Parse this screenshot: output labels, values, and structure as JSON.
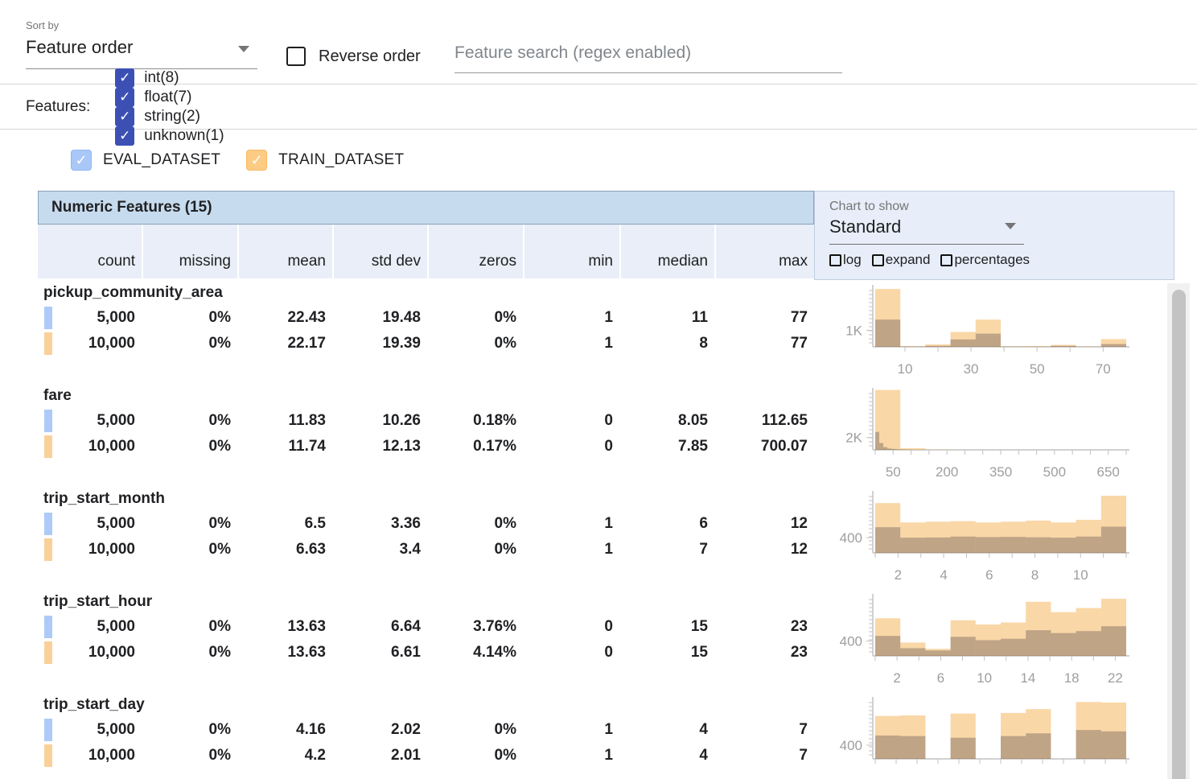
{
  "toolbar": {
    "sort_by_label": "Sort by",
    "sort_value": "Feature order",
    "reverse_label": "Reverse order",
    "search_placeholder": "Feature search (regex enabled)"
  },
  "filters": {
    "label": "Features:",
    "types": [
      {
        "id": "int",
        "label": "int(8)",
        "checked": true
      },
      {
        "id": "float",
        "label": "float(7)",
        "checked": true
      },
      {
        "id": "string",
        "label": "string(2)",
        "checked": true
      },
      {
        "id": "unknown",
        "label": "unknown(1)",
        "checked": true
      }
    ],
    "checkbox_color": "#3c50b4"
  },
  "datasets": [
    {
      "name": "EVAL_DATASET",
      "checked": true,
      "checkbox_color": "#a9c8f8",
      "checkbox_border": "#90b6f3",
      "swatch": "#adcaf9"
    },
    {
      "name": "TRAIN_DATASET",
      "checked": true,
      "checkbox_color": "#fccb84",
      "checkbox_border": "#f9ba61",
      "swatch": "#fad099"
    }
  ],
  "chart_controls": {
    "label": "Chart to show",
    "value": "Standard",
    "checkboxes": [
      "log",
      "expand",
      "percentages"
    ]
  },
  "table": {
    "title": "Numeric Features (15)",
    "columns": [
      "count",
      "missing",
      "mean",
      "std dev",
      "zeros",
      "min",
      "median",
      "max"
    ],
    "features": [
      {
        "name": "pickup_community_area",
        "rows": [
          {
            "dataset": "EVAL_DATASET",
            "values": [
              "5,000",
              "0%",
              "22.43",
              "19.48",
              "0%",
              "1",
              "11",
              "77"
            ]
          },
          {
            "dataset": "TRAIN_DATASET",
            "values": [
              "10,000",
              "0%",
              "22.17",
              "19.39",
              "0%",
              "1",
              "8",
              "77"
            ]
          }
        ]
      },
      {
        "name": "fare",
        "rows": [
          {
            "dataset": "EVAL_DATASET",
            "values": [
              "5,000",
              "0%",
              "11.83",
              "10.26",
              "0.18%",
              "0",
              "8.05",
              "112.65"
            ]
          },
          {
            "dataset": "TRAIN_DATASET",
            "values": [
              "10,000",
              "0%",
              "11.74",
              "12.13",
              "0.17%",
              "0",
              "7.85",
              "700.07"
            ]
          }
        ]
      },
      {
        "name": "trip_start_month",
        "rows": [
          {
            "dataset": "EVAL_DATASET",
            "values": [
              "5,000",
              "0%",
              "6.5",
              "3.36",
              "0%",
              "1",
              "6",
              "12"
            ]
          },
          {
            "dataset": "TRAIN_DATASET",
            "values": [
              "10,000",
              "0%",
              "6.63",
              "3.4",
              "0%",
              "1",
              "7",
              "12"
            ]
          }
        ]
      },
      {
        "name": "trip_start_hour",
        "rows": [
          {
            "dataset": "EVAL_DATASET",
            "values": [
              "5,000",
              "0%",
              "13.63",
              "6.64",
              "3.76%",
              "0",
              "15",
              "23"
            ]
          },
          {
            "dataset": "TRAIN_DATASET",
            "values": [
              "10,000",
              "0%",
              "13.63",
              "6.61",
              "4.14%",
              "0",
              "15",
              "23"
            ]
          }
        ]
      },
      {
        "name": "trip_start_day",
        "rows": [
          {
            "dataset": "EVAL_DATASET",
            "values": [
              "5,000",
              "0%",
              "4.16",
              "2.02",
              "0%",
              "1",
              "4",
              "7"
            ]
          },
          {
            "dataset": "TRAIN_DATASET",
            "values": [
              "10,000",
              "0%",
              "4.2",
              "2.01",
              "0%",
              "1",
              "4",
              "7"
            ]
          }
        ]
      }
    ]
  },
  "chart_style": {
    "train_fill": "#f5a83f",
    "train_opacity": 0.46,
    "eval_fill": "#554b4e",
    "eval_opacity": 0.36,
    "axis_color": "#c2c2c2",
    "label_color": "#9e9e9e"
  },
  "chart_data": [
    {
      "type": "histogram",
      "feature": "pickup_community_area",
      "ylabel": "1K",
      "ylabel_value": 1000,
      "ymax": 3700,
      "xmin": 1,
      "xmax": 77,
      "xtick_step": 10,
      "xtick_labels": [
        10,
        30,
        50,
        70
      ],
      "series": [
        {
          "name": "TRAIN_DATASET",
          "bucket_width": 7.6,
          "x0": [
            1,
            8.6,
            16.2,
            23.8,
            31.4,
            39,
            46.6,
            54.2,
            61.8,
            69.4
          ],
          "counts": [
            3500,
            40,
            150,
            900,
            1650,
            30,
            40,
            120,
            20,
            470
          ]
        },
        {
          "name": "EVAL_DATASET",
          "bucket_width": 7.6,
          "x0": [
            1,
            8.6,
            16.2,
            23.8,
            31.4,
            39,
            46.6,
            54.2,
            61.8,
            69.4
          ],
          "counts": [
            1650,
            20,
            60,
            450,
            800,
            15,
            15,
            60,
            10,
            170
          ]
        }
      ]
    },
    {
      "type": "histogram",
      "feature": "fare",
      "ylabel": "2K",
      "ylabel_value": 2000,
      "ymax": 9900,
      "xmin": 0,
      "xmax": 700,
      "xtick_step": 50,
      "xtick_labels": [
        50,
        200,
        350,
        500,
        650
      ],
      "series": [
        {
          "name": "TRAIN_DATASET",
          "bucket_width": 70,
          "x0": [
            0,
            70,
            140,
            210,
            280,
            350,
            420,
            490,
            560,
            630
          ],
          "counts": [
            9700,
            250,
            40,
            15,
            8,
            5,
            3,
            2,
            1,
            1
          ]
        },
        {
          "name": "EVAL_DATASET",
          "bucket_width": 11.265,
          "x0": [
            0,
            11.265,
            22.53,
            33.8,
            45.06,
            56.33,
            67.59,
            78.86,
            90.12,
            101.39
          ],
          "counts": [
            2900,
            1100,
            440,
            220,
            150,
            90,
            60,
            40,
            25,
            15
          ]
        }
      ]
    },
    {
      "type": "histogram",
      "feature": "trip_start_month",
      "ylabel": "400",
      "ylabel_value": 400,
      "ymax": 1610,
      "xmin": 1,
      "xmax": 12,
      "xtick_step": 1,
      "xtick_labels": [
        2,
        4,
        6,
        8,
        10
      ],
      "series": [
        {
          "name": "TRAIN_DATASET",
          "bucket_width": 1.1,
          "x0": [
            1,
            2.1,
            3.2,
            4.3,
            5.4,
            6.5,
            7.6,
            8.7,
            9.8,
            10.9
          ],
          "counts": [
            1310,
            800,
            820,
            835,
            800,
            820,
            850,
            800,
            870,
            1505
          ]
        },
        {
          "name": "EVAL_DATASET",
          "bucket_width": 1.1,
          "x0": [
            1,
            2.1,
            3.2,
            4.3,
            5.4,
            6.5,
            7.6,
            8.7,
            9.8,
            10.9
          ],
          "counts": [
            676,
            400,
            405,
            430,
            415,
            420,
            410,
            400,
            430,
            690
          ]
        }
      ]
    },
    {
      "type": "histogram",
      "feature": "trip_start_hour",
      "ylabel": "400",
      "ylabel_value": 400,
      "ymax": 1650,
      "xmin": 0,
      "xmax": 23,
      "xtick_step": 2,
      "xtick_labels": [
        2,
        6,
        10,
        14,
        18,
        22
      ],
      "series": [
        {
          "name": "TRAIN_DATASET",
          "bucket_width": 2.3,
          "x0": [
            0,
            2.3,
            4.6,
            6.9,
            9.2,
            11.5,
            13.8,
            16.1,
            18.4,
            20.7
          ],
          "counts": [
            1015,
            360,
            190,
            960,
            846,
            900,
            1460,
            1180,
            1290,
            1540
          ]
        },
        {
          "name": "EVAL_DATASET",
          "bucket_width": 2.3,
          "x0": [
            0,
            2.3,
            4.6,
            6.9,
            9.2,
            11.5,
            13.8,
            16.1,
            18.4,
            20.7
          ],
          "counts": [
            538,
            208,
            146,
            515,
            423,
            462,
            692,
            615,
            669,
            800
          ]
        }
      ]
    },
    {
      "type": "histogram",
      "feature": "trip_start_day",
      "ylabel": "400",
      "ylabel_value": 400,
      "ymax": 1780,
      "xmin": 1,
      "xmax": 7,
      "xtick_step": 0.5,
      "xtick_labels": [],
      "series": [
        {
          "name": "TRAIN_DATASET",
          "bucket_width": 0.6,
          "x0": [
            1,
            1.6,
            2.2,
            2.8,
            3.4,
            4,
            4.6,
            5.2,
            5.8,
            6.4
          ],
          "counts": [
            1250,
            1264,
            0,
            1320,
            0,
            1336,
            1448,
            0,
            1656,
            1640
          ]
        },
        {
          "name": "EVAL_DATASET",
          "bucket_width": 0.6,
          "x0": [
            1,
            1.6,
            2.2,
            2.8,
            3.4,
            4,
            4.6,
            5.2,
            5.8,
            6.4
          ],
          "counts": [
            680,
            664,
            0,
            616,
            0,
            664,
            744,
            0,
            840,
            800
          ]
        }
      ]
    }
  ]
}
